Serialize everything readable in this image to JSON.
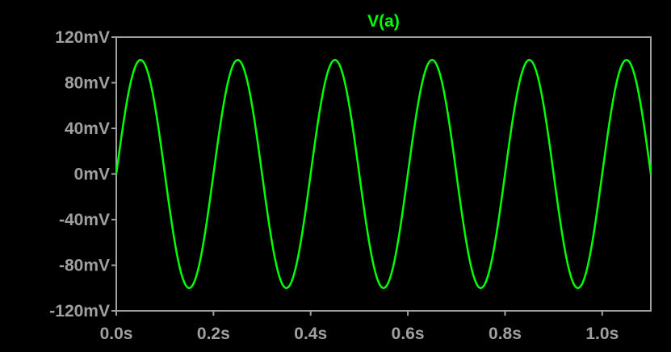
{
  "chart_data": {
    "type": "line",
    "title": "V(a)",
    "xlabel": "",
    "ylabel": "",
    "x_ticks": [
      "0.0s",
      "0.2s",
      "0.4s",
      "0.6s",
      "0.8s",
      "1.0s"
    ],
    "x_tick_values": [
      0.0,
      0.2,
      0.4,
      0.6,
      0.8,
      1.0
    ],
    "y_ticks": [
      "120mV",
      "80mV",
      "40mV",
      "0mV",
      "-40mV",
      "-80mV",
      "-120mV"
    ],
    "y_tick_values": [
      120,
      80,
      40,
      0,
      -40,
      -80,
      -120
    ],
    "xlim": [
      0.0,
      1.1
    ],
    "ylim": [
      -120,
      120
    ],
    "x_unit": "s",
    "y_unit": "mV",
    "grid": false,
    "series": [
      {
        "name": "V(a)",
        "function": "sine",
        "amplitude_mV": 100,
        "frequency_Hz": 5,
        "offset_mV": 0,
        "t_start_s": 0.0,
        "t_end_s": 1.1,
        "color": "#00ff00"
      }
    ]
  },
  "colors": {
    "background": "#000000",
    "frame": "#a0a0a0",
    "tick_label": "#a0a0a0",
    "trace": "#00ff00"
  }
}
